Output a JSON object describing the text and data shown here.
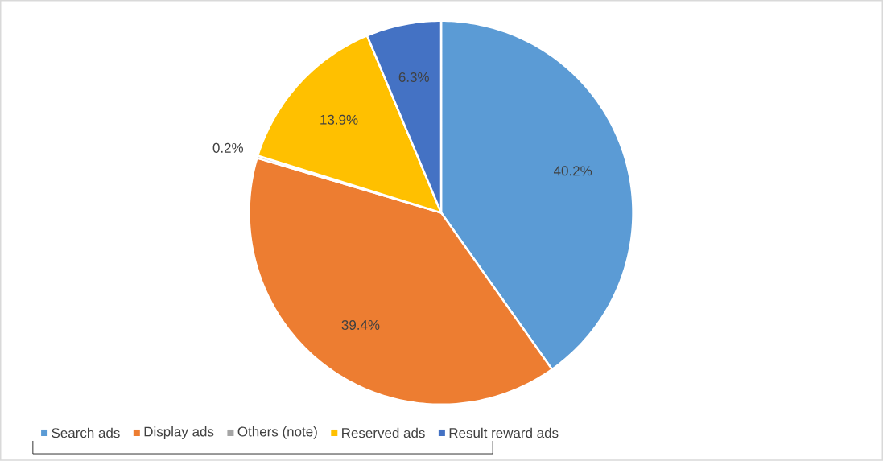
{
  "chart_data": {
    "type": "pie",
    "categories": [
      "Search ads",
      "Display ads",
      "Others (note)",
      "Reserved ads",
      "Result reward ads"
    ],
    "values": [
      40.2,
      39.4,
      0.2,
      13.9,
      6.3
    ],
    "value_labels": [
      "40.2%",
      "39.4%",
      "0.2%",
      "13.9%",
      "6.3%"
    ],
    "colors": [
      "#5b9bd5",
      "#ed7d31",
      "#a5a5a5",
      "#ffc000",
      "#4472c4"
    ],
    "legend": "bottom"
  }
}
